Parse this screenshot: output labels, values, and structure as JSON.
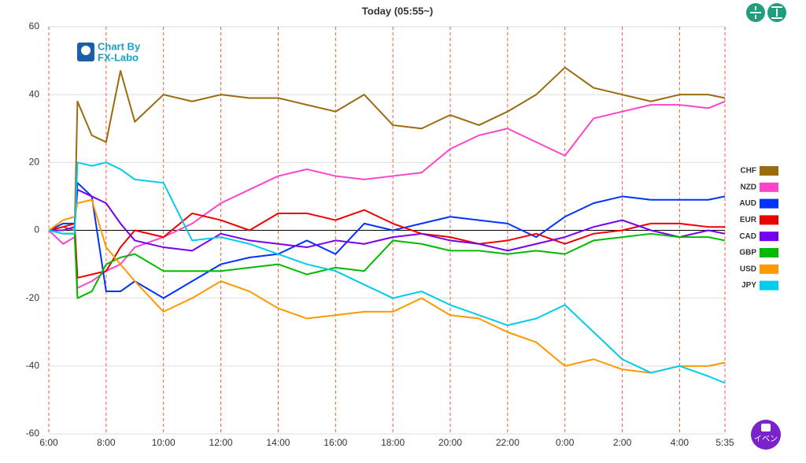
{
  "chart_data": {
    "type": "line",
    "title": "Today  (05:55~)",
    "x": [
      0,
      0.5,
      0.9,
      1.0,
      1.5,
      2,
      2.5,
      3,
      4,
      5,
      6,
      7,
      8,
      9,
      10,
      11,
      12,
      13,
      14,
      15,
      16,
      17,
      18,
      19,
      20,
      21,
      22,
      23,
      23.58
    ],
    "xlim": [
      0,
      23.58
    ],
    "xticks": [
      {
        "value": 0,
        "label": "6:00"
      },
      {
        "value": 2,
        "label": "8:00"
      },
      {
        "value": 4,
        "label": "10:00"
      },
      {
        "value": 6,
        "label": "12:00"
      },
      {
        "value": 8,
        "label": "14:00"
      },
      {
        "value": 10,
        "label": "16:00"
      },
      {
        "value": 12,
        "label": "18:00"
      },
      {
        "value": 14,
        "label": "20:00"
      },
      {
        "value": 16,
        "label": "22:00"
      },
      {
        "value": 18,
        "label": "0:00"
      },
      {
        "value": 20,
        "label": "2:00"
      },
      {
        "value": 22,
        "label": "4:00"
      },
      {
        "value": 23.58,
        "label": "5:35"
      }
    ],
    "ylim": [
      -60,
      60
    ],
    "yticks": [
      -60,
      -40,
      -20,
      0,
      20,
      40,
      60
    ],
    "grid": true,
    "series": [
      {
        "name": "CHF",
        "color": "#9c6b10",
        "values": [
          0,
          1,
          0,
          38,
          28,
          26,
          47,
          32,
          40,
          38,
          40,
          39,
          39,
          37,
          35,
          40,
          31,
          30,
          34,
          31,
          35,
          40,
          48,
          42,
          40,
          38,
          40,
          40,
          39
        ]
      },
      {
        "name": "NZD",
        "color": "#ff44cc",
        "values": [
          0,
          -4,
          -2,
          -17,
          -15,
          -12,
          -10,
          -5,
          -2,
          2,
          8,
          12,
          16,
          18,
          16,
          15,
          16,
          17,
          24,
          28,
          30,
          26,
          22,
          33,
          35,
          37,
          37,
          36,
          38
        ]
      },
      {
        "name": "AUD",
        "color": "#0033ff",
        "values": [
          0,
          2,
          2,
          14,
          10,
          -18,
          -18,
          -15,
          -20,
          -15,
          -10,
          -8,
          -7,
          -3,
          -7,
          2,
          0,
          2,
          4,
          3,
          2,
          -2,
          4,
          8,
          10,
          9,
          9,
          9,
          10
        ]
      },
      {
        "name": "EUR",
        "color": "#ee0000",
        "values": [
          0,
          1,
          2,
          -14,
          -13,
          -12,
          -5,
          0,
          -2,
          5,
          3,
          0,
          5,
          5,
          3,
          6,
          2,
          -1,
          -2,
          -4,
          -3,
          -1,
          -4,
          -1,
          0,
          2,
          2,
          1,
          1
        ]
      },
      {
        "name": "CAD",
        "color": "#7700ee",
        "values": [
          0,
          0,
          1,
          12,
          10,
          8,
          2,
          -3,
          -5,
          -6,
          -1,
          -3,
          -4,
          -5,
          -3,
          -4,
          -2,
          -1,
          -3,
          -4,
          -6,
          -4,
          -2,
          1,
          3,
          0,
          -2,
          0,
          -1
        ]
      },
      {
        "name": "GBP",
        "color": "#00bb00",
        "values": [
          0,
          -1,
          -1,
          -20,
          -18,
          -10,
          -8,
          -7,
          -12,
          -12,
          -12,
          -11,
          -10,
          -13,
          -11,
          -12,
          -3,
          -4,
          -6,
          -6,
          -7,
          -6,
          -7,
          -3,
          -2,
          -1,
          -2,
          -2,
          -3
        ]
      },
      {
        "name": "USD",
        "color": "#ff9900",
        "values": [
          0,
          3,
          4,
          8,
          9,
          -5,
          -10,
          -15,
          -24,
          -20,
          -15,
          -18,
          -23,
          -26,
          -25,
          -24,
          -24,
          -20,
          -25,
          -26,
          -30,
          -33,
          -40,
          -38,
          -41,
          -42,
          -40,
          -40,
          -39
        ]
      },
      {
        "name": "JPY",
        "color": "#00ccee",
        "values": [
          0,
          -1,
          -1,
          20,
          19,
          20,
          18,
          15,
          14,
          -3,
          -2,
          -4,
          -7,
          -10,
          -12,
          -16,
          -20,
          -18,
          -22,
          -25,
          -28,
          -26,
          -22,
          -30,
          -38,
          -42,
          -40,
          -43,
          -45
        ]
      }
    ]
  },
  "logo": [
    "Chart By",
    "FX-Labo"
  ],
  "event_button": "イベン"
}
